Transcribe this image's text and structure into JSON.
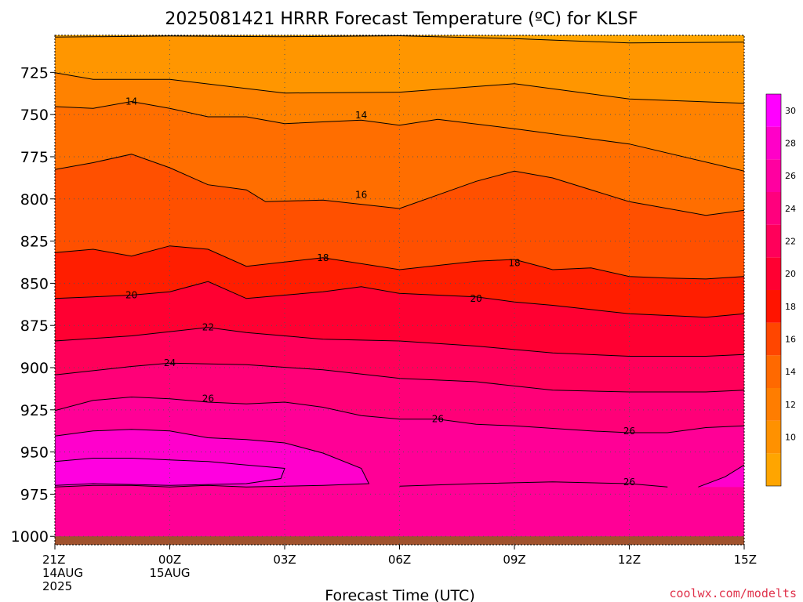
{
  "title": "2025081421 HRRR Forecast Temperature (ºC) for KLSF",
  "xlabel": "Forecast Time (UTC)",
  "credit": "coolwx.com/modelts",
  "chart_data": {
    "type": "heatmap",
    "title": "2025081421 HRRR Forecast Temperature (ºC) for KLSF",
    "xlabel": "Forecast Time (UTC)",
    "ylabel": "",
    "grid": true,
    "legend_position": "right",
    "x_ticks": [
      {
        "hour": 0,
        "label": "21Z",
        "sub1": "14AUG",
        "sub2": "2025"
      },
      {
        "hour": 3,
        "label": "00Z",
        "sub1": "15AUG",
        "sub2": ""
      },
      {
        "hour": 6,
        "label": "03Z",
        "sub1": "",
        "sub2": ""
      },
      {
        "hour": 9,
        "label": "06Z",
        "sub1": "",
        "sub2": ""
      },
      {
        "hour": 12,
        "label": "09Z",
        "sub1": "",
        "sub2": ""
      },
      {
        "hour": 15,
        "label": "12Z",
        "sub1": "",
        "sub2": ""
      },
      {
        "hour": 18,
        "label": "15Z",
        "sub1": "",
        "sub2": ""
      }
    ],
    "y_ticks": [
      725,
      750,
      775,
      800,
      825,
      850,
      875,
      900,
      925,
      950,
      975,
      1000
    ],
    "xlim": [
      0,
      18
    ],
    "ylim": [
      1005,
      703
    ],
    "ground_pressure": 1000,
    "colorbar": {
      "levels": [
        10,
        12,
        14,
        16,
        18,
        20,
        22,
        24,
        26,
        28,
        30,
        32
      ],
      "colors": [
        "#FFA500",
        "#FF9100",
        "#FF7D00",
        "#FF6900",
        "#FF4600",
        "#FF1400",
        "#FF0032",
        "#FF005A",
        "#FF007D",
        "#FF00A0",
        "#FF00C8",
        "#FF00FF"
      ]
    },
    "fill_colors": {
      "lt10": "#FFA500",
      "10": "#FF9600",
      "12": "#FF8200",
      "14": "#FF6E00",
      "16": "#FF5000",
      "18": "#FF1E00",
      "20": "#FF0032",
      "22": "#FF005A",
      "24": "#FF0078",
      "26": "#FF0096",
      "28": "#FF00CC"
    },
    "contours": [
      {
        "level": 10,
        "label": "",
        "points": [
          [
            0,
            1
          ],
          [
            3,
            0.4
          ],
          [
            6,
            0.8
          ],
          [
            9,
            0.3
          ],
          [
            12,
            2
          ],
          [
            15,
            4.5
          ],
          [
            18,
            4
          ]
        ]
      },
      {
        "level": 12,
        "label": "",
        "points": [
          [
            0,
            22
          ],
          [
            1,
            26
          ],
          [
            3,
            26
          ],
          [
            6,
            34
          ],
          [
            9,
            33.5
          ],
          [
            12,
            28.5
          ],
          [
            15,
            37.5
          ],
          [
            18,
            40
          ]
        ]
      },
      {
        "level": 14,
        "label": "14",
        "label_hour": 2,
        "points": [
          [
            0,
            42
          ],
          [
            1,
            43
          ],
          [
            2,
            39
          ],
          [
            3,
            43
          ],
          [
            4,
            48
          ],
          [
            5,
            48
          ],
          [
            6,
            52
          ],
          [
            8,
            50
          ],
          [
            9,
            53
          ],
          [
            10,
            49.5
          ],
          [
            12,
            55
          ],
          [
            13,
            58
          ],
          [
            15,
            64
          ],
          [
            18,
            80
          ]
        ]
      },
      {
        "level": 16,
        "label": "16",
        "label_hour": 8,
        "points": [
          [
            0,
            79
          ],
          [
            1,
            75
          ],
          [
            2,
            70
          ],
          [
            3,
            78
          ],
          [
            4,
            88
          ],
          [
            5,
            91
          ],
          [
            5.5,
            98
          ],
          [
            7,
            97
          ],
          [
            9,
            102
          ],
          [
            10,
            94
          ],
          [
            11,
            86
          ],
          [
            12,
            80
          ],
          [
            13,
            84
          ],
          [
            15,
            98
          ],
          [
            17,
            106
          ],
          [
            18,
            103
          ]
        ]
      },
      {
        "level": 18,
        "label": "18",
        "label_hour": 12,
        "points": [
          [
            0,
            128
          ],
          [
            1,
            126
          ],
          [
            2,
            130
          ],
          [
            3,
            124
          ],
          [
            4,
            126
          ],
          [
            5,
            136
          ],
          [
            7,
            131
          ],
          [
            9,
            138
          ],
          [
            11,
            133
          ],
          [
            12,
            132
          ],
          [
            13,
            138
          ],
          [
            14,
            137
          ],
          [
            15,
            142
          ],
          [
            16,
            143
          ],
          [
            17,
            143.5
          ],
          [
            18,
            142
          ]
        ]
      },
      {
        "level": 20,
        "label": "20",
        "label_hour": 2,
        "points": [
          [
            0,
            155
          ],
          [
            1,
            154
          ],
          [
            2,
            153
          ],
          [
            3,
            151
          ],
          [
            4,
            145
          ],
          [
            5,
            155
          ],
          [
            7,
            151
          ],
          [
            8,
            148
          ],
          [
            9,
            152
          ],
          [
            11,
            154
          ],
          [
            12,
            157
          ],
          [
            13,
            159
          ],
          [
            15,
            164
          ],
          [
            17,
            166
          ],
          [
            18,
            164
          ]
        ]
      },
      {
        "level": 22,
        "label": "22",
        "label_hour": 4,
        "points": [
          [
            0,
            180
          ],
          [
            2,
            177
          ],
          [
            4,
            172
          ],
          [
            5,
            175
          ],
          [
            7,
            179
          ],
          [
            9,
            180
          ],
          [
            11,
            183
          ],
          [
            13,
            187
          ],
          [
            15,
            189
          ],
          [
            17,
            189
          ],
          [
            18,
            188
          ]
        ]
      },
      {
        "level": 24,
        "label": "24",
        "label_hour": 3,
        "points": [
          [
            0,
            200
          ],
          [
            2,
            195
          ],
          [
            3,
            193
          ],
          [
            5,
            194
          ],
          [
            7,
            197
          ],
          [
            9,
            202
          ],
          [
            11,
            204
          ],
          [
            13,
            209
          ],
          [
            15,
            210
          ],
          [
            17,
            210
          ],
          [
            18,
            209
          ]
        ]
      },
      {
        "level": 26,
        "label": "26",
        "label_hour": 4,
        "points": [
          [
            0,
            221
          ],
          [
            1,
            215
          ],
          [
            2,
            213
          ],
          [
            3,
            214
          ],
          [
            4,
            216
          ],
          [
            5,
            217
          ],
          [
            6,
            216
          ],
          [
            7,
            219
          ],
          [
            8,
            224
          ],
          [
            9,
            226
          ],
          [
            10,
            226
          ],
          [
            11,
            229
          ],
          [
            12,
            230
          ],
          [
            14,
            233
          ],
          [
            15,
            234
          ],
          [
            16,
            234
          ],
          [
            17,
            231
          ],
          [
            18,
            230
          ]
        ]
      },
      {
        "level": 28,
        "label": "",
        "points": [
          [
            0,
            236
          ],
          [
            1,
            233
          ],
          [
            2,
            232
          ],
          [
            3,
            233
          ],
          [
            4,
            237
          ],
          [
            5,
            238
          ],
          [
            6,
            240
          ],
          [
            7,
            246
          ],
          [
            8,
            255
          ],
          [
            8.2,
            264
          ],
          [
            7,
            265
          ],
          [
            5,
            266
          ],
          [
            4,
            265
          ],
          [
            3,
            266
          ],
          [
            2,
            265
          ],
          [
            1,
            265
          ],
          [
            0,
            266
          ]
        ]
      },
      {
        "level": 30,
        "label": "",
        "points": [
          [
            0,
            251
          ],
          [
            1,
            249
          ],
          [
            2,
            249
          ],
          [
            3,
            250
          ],
          [
            4,
            251
          ],
          [
            5,
            253
          ],
          [
            6,
            255
          ],
          [
            5.9,
            261
          ],
          [
            5,
            264
          ],
          [
            3,
            265
          ],
          [
            1,
            264
          ],
          [
            0,
            265
          ]
        ]
      },
      {
        "level": 26,
        "label": "26",
        "label_hour": 15,
        "points": [
          [
            9,
            265.5
          ],
          [
            11,
            264
          ],
          [
            13,
            263
          ],
          [
            15,
            264
          ],
          [
            16,
            266
          ]
        ]
      },
      {
        "level": 28,
        "label": "",
        "points": [
          [
            16.8,
            266
          ],
          [
            17.5,
            260
          ],
          [
            18,
            253
          ]
        ]
      }
    ],
    "data_label_positions": [
      {
        "text": "14",
        "hour": 2,
        "y": 39
      },
      {
        "text": "14",
        "hour": 8,
        "y": 47
      },
      {
        "text": "16",
        "hour": 8,
        "y": 94
      },
      {
        "text": "18",
        "hour": 7,
        "y": 131
      },
      {
        "text": "18",
        "hour": 12,
        "y": 134
      },
      {
        "text": "20",
        "hour": 2,
        "y": 153
      },
      {
        "text": "20",
        "hour": 11,
        "y": 155
      },
      {
        "text": "22",
        "hour": 4,
        "y": 172
      },
      {
        "text": "24",
        "hour": 3,
        "y": 193
      },
      {
        "text": "26",
        "hour": 4,
        "y": 214
      },
      {
        "text": "26",
        "hour": 10,
        "y": 226
      },
      {
        "text": "26",
        "hour": 15,
        "y": 233
      },
      {
        "text": "26",
        "hour": 15,
        "y": 263
      }
    ]
  }
}
